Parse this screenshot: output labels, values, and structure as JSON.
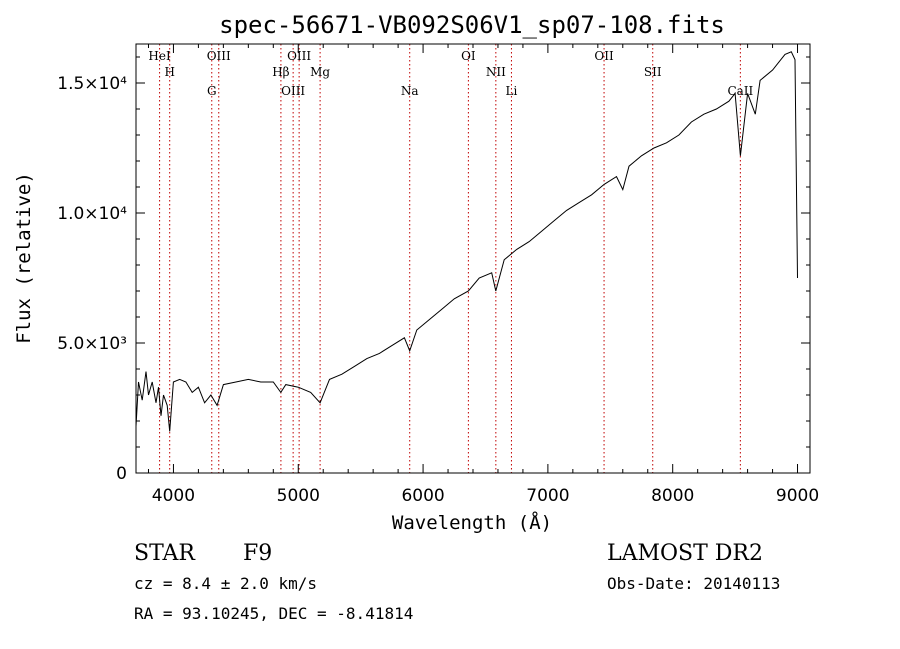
{
  "title": "spec-56671-VB092S06V1_sp07-108.fits",
  "footer": {
    "class": "STAR",
    "subclass": "F9",
    "cz": "cz = 8.4 ± 2.0 km/s",
    "coords": "RA =  93.10245, DEC =  -8.41814",
    "survey": "LAMOST DR2",
    "obs_date": "Obs-Date: 20140113"
  },
  "chart_data": {
    "type": "line",
    "title": "spec-56671-VB092S06V1_sp07-108.fits",
    "xlabel": "Wavelength (Å)",
    "ylabel": "Flux (relative)",
    "xlim": [
      3700,
      9100
    ],
    "ylim": [
      0,
      16500
    ],
    "x_ticks": [
      4000,
      5000,
      6000,
      7000,
      8000,
      9000
    ],
    "y_ticks": [
      {
        "value": 0,
        "label": "0"
      },
      {
        "value": 5000,
        "label": "5.0×10³"
      },
      {
        "value": 10000,
        "label": "1.0×10⁴"
      },
      {
        "value": 15000,
        "label": "1.5×10⁴"
      }
    ],
    "grid": false,
    "spectral_lines": [
      {
        "wavelength": 3889,
        "label": "HeI"
      },
      {
        "wavelength": 3970,
        "label": "H"
      },
      {
        "wavelength": 4307,
        "label": "G"
      },
      {
        "wavelength": 4363,
        "label": "OIII"
      },
      {
        "wavelength": 4861,
        "label": "Hβ"
      },
      {
        "wavelength": 4959,
        "label": "OIII"
      },
      {
        "wavelength": 5007,
        "label": "OIII"
      },
      {
        "wavelength": 5175,
        "label": "Mg"
      },
      {
        "wavelength": 5893,
        "label": "Na"
      },
      {
        "wavelength": 6363,
        "label": "OI"
      },
      {
        "wavelength": 6583,
        "label": "NII"
      },
      {
        "wavelength": 6708,
        "label": "Li"
      },
      {
        "wavelength": 7450,
        "label": "OII"
      },
      {
        "wavelength": 7840,
        "label": "SII"
      },
      {
        "wavelength": 8542,
        "label": "CaII"
      }
    ],
    "series": [
      {
        "x": [
          3700,
          3720,
          3750,
          3780,
          3800,
          3830,
          3860,
          3880,
          3900,
          3920,
          3950,
          3970,
          4000,
          4050,
          4100,
          4150,
          4200,
          4250,
          4300,
          4350,
          4400,
          4500,
          4600,
          4700,
          4800,
          4860,
          4900,
          5000,
          5100,
          5175,
          5250,
          5350,
          5450,
          5550,
          5650,
          5750,
          5850,
          5893,
          5950,
          6050,
          6150,
          6250,
          6363,
          6450,
          6550,
          6583,
          6650,
          6750,
          6850,
          6950,
          7050,
          7150,
          7250,
          7350,
          7450,
          7550,
          7600,
          7650,
          7750,
          7850,
          7950,
          8050,
          8150,
          8250,
          8350,
          8450,
          8500,
          8542,
          8600,
          8662,
          8700,
          8800,
          8850,
          8900,
          8950,
          8980,
          9000
        ],
        "y": [
          1800,
          3500,
          2800,
          3900,
          3000,
          3500,
          2700,
          3300,
          2200,
          3000,
          2600,
          1600,
          3500,
          3600,
          3500,
          3100,
          3300,
          2700,
          3000,
          2600,
          3400,
          3500,
          3600,
          3500,
          3500,
          3100,
          3400,
          3300,
          3100,
          2700,
          3600,
          3800,
          4100,
          4400,
          4600,
          4900,
          5200,
          4700,
          5500,
          5900,
          6300,
          6700,
          7000,
          7500,
          7700,
          7000,
          8200,
          8600,
          8900,
          9300,
          9700,
          10100,
          10400,
          10700,
          11100,
          11400,
          10900,
          11800,
          12200,
          12500,
          12700,
          13000,
          13500,
          13800,
          14000,
          14300,
          14600,
          12200,
          14600,
          13800,
          15100,
          15500,
          15800,
          16100,
          16200,
          15900,
          7500
        ]
      }
    ]
  }
}
